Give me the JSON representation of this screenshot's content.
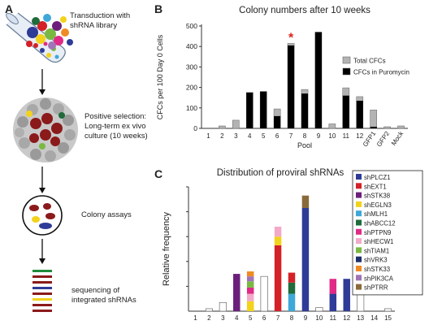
{
  "panelA": {
    "letter": "A",
    "steps": [
      "Transduction with shRNA library",
      "Positive selection: Long-term ex vivo culture (10 weeks)",
      "Colony assays",
      "sequencing of integrated shRNAs"
    ]
  },
  "panelB": {
    "letter": "B"
  },
  "panelC": {
    "letter": "C"
  },
  "chart_data": [
    {
      "type": "bar",
      "title": "Colony numbers after 10 weeks",
      "xlabel": "Pool",
      "ylabel": "CFCs per 100 Day 0 Cells",
      "ylim": [
        0,
        500
      ],
      "yticks": [
        0,
        100,
        200,
        300,
        400,
        500
      ],
      "categories": [
        "1",
        "2",
        "3",
        "4",
        "5",
        "6",
        "7",
        "8",
        "9",
        "10",
        "11",
        "12",
        "GFP1",
        "GFP2",
        "Mock"
      ],
      "series": [
        {
          "name": "Total CFCs",
          "color": "#b3b3b3",
          "values": [
            0,
            12,
            40,
            175,
            180,
            95,
            415,
            190,
            470,
            22,
            198,
            155,
            90,
            8,
            12
          ]
        },
        {
          "name": "CFCs in Puromycin",
          "color": "#000000",
          "values": [
            0,
            0,
            0,
            175,
            180,
            60,
            405,
            170,
            470,
            0,
            160,
            135,
            8,
            0,
            0
          ]
        }
      ],
      "annotation": {
        "text": "*",
        "category": "7",
        "color": "#e0201b"
      },
      "legend_position": "right"
    },
    {
      "type": "bar",
      "title": "Distribution of proviral shRNAs",
      "ylabel": "Relative frequency",
      "categories": [
        "1",
        "2",
        "3",
        "4",
        "5",
        "6",
        "7",
        "8",
        "9",
        "10",
        "11",
        "12",
        "13",
        "14",
        "15"
      ],
      "shRNAs": [
        {
          "name": "shPLCZ1",
          "color": "#2e3b97"
        },
        {
          "name": "shEXT1",
          "color": "#d42027"
        },
        {
          "name": "shSTK38",
          "color": "#6b1f7b"
        },
        {
          "name": "shEGLN3",
          "color": "#f3d21c"
        },
        {
          "name": "shMLH1",
          "color": "#3fa8d8"
        },
        {
          "name": "shABCC12",
          "color": "#1f6b3a"
        },
        {
          "name": "shPTPN9",
          "color": "#e02a86"
        },
        {
          "name": "shHECW1",
          "color": "#f3a9c8"
        },
        {
          "name": "shTIAM1",
          "color": "#79b943"
        },
        {
          "name": "shVRK3",
          "color": "#1c2f6b"
        },
        {
          "name": "shSTK33",
          "color": "#f08a24"
        },
        {
          "name": "shPIK3CA",
          "color": "#a074b6"
        },
        {
          "name": "shPTRR",
          "color": "#8a6a3a"
        }
      ],
      "stacks": [
        [],
        [
          {
            "v": 0.02,
            "c": "none"
          }
        ],
        [
          {
            "v": 0.07,
            "c": "none"
          }
        ],
        [
          {
            "v": 0.3,
            "c": "shSTK38"
          }
        ],
        [
          {
            "v": 0.08,
            "c": "shEGLN3"
          },
          {
            "v": 0.06,
            "c": "shHECW1"
          },
          {
            "v": 0.05,
            "c": "shPTPN9"
          },
          {
            "v": 0.05,
            "c": "shTIAM1"
          },
          {
            "v": 0.04,
            "c": "shPIK3CA"
          },
          {
            "v": 0.04,
            "c": "shSTK33"
          }
        ],
        [
          {
            "v": 0.28,
            "c": "none"
          }
        ],
        [
          {
            "v": 0.53,
            "c": "shEXT1"
          },
          {
            "v": 0.07,
            "c": "shEGLN3"
          },
          {
            "v": 0.08,
            "c": "shHECW1"
          }
        ],
        [
          {
            "v": 0.14,
            "c": "shMLH1"
          },
          {
            "v": 0.09,
            "c": "shABCC12"
          },
          {
            "v": 0.08,
            "c": "shEXT1"
          }
        ],
        [
          {
            "v": 0.83,
            "c": "shPLCZ1"
          },
          {
            "v": 0.1,
            "c": "shPTRR"
          }
        ],
        [
          {
            "v": 0.03,
            "c": "none"
          }
        ],
        [
          {
            "v": 0.14,
            "c": "shPLCZ1"
          },
          {
            "v": 0.12,
            "c": "shPTPN9"
          }
        ],
        [
          {
            "v": 0.26,
            "c": "shPLCZ1"
          }
        ],
        [
          {
            "v": 0.2,
            "c": "none"
          }
        ],
        [],
        [
          {
            "v": 0.02,
            "c": "none"
          }
        ]
      ]
    }
  ]
}
